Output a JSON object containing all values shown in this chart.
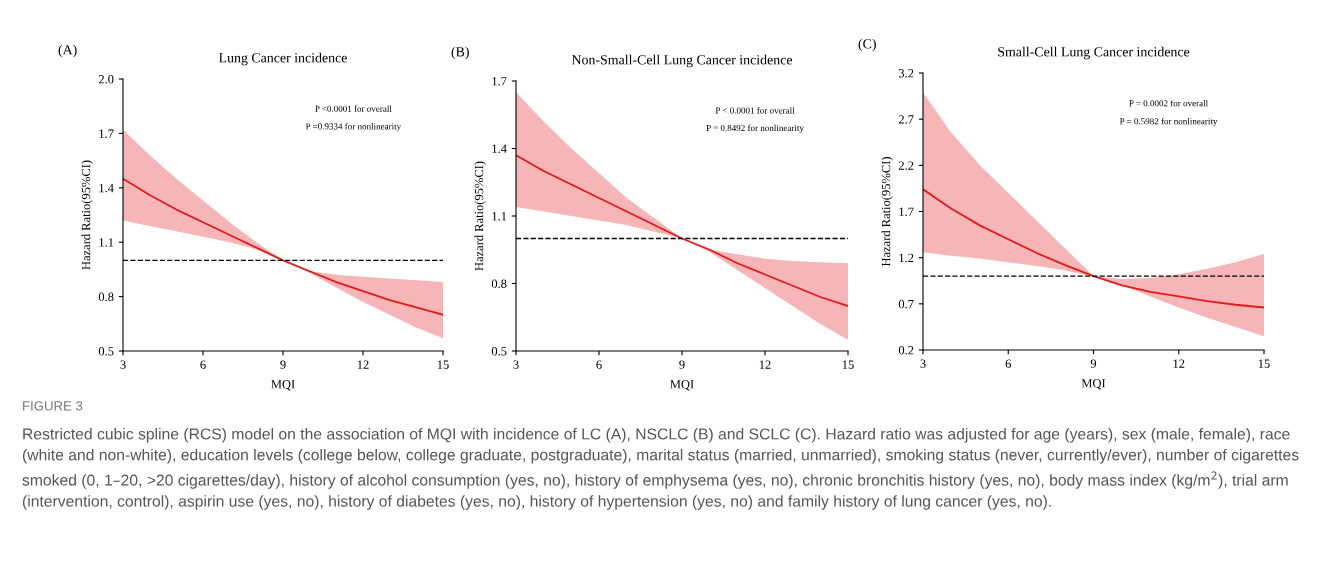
{
  "chart_data": [
    {
      "type": "line",
      "title": "Lung Cancer incidence",
      "xlabel": "MQI",
      "ylabel": "Hazard Ratio(95%CI)",
      "x": [
        3,
        4,
        5,
        6,
        7,
        8,
        9,
        10,
        11,
        12,
        13,
        14,
        15
      ],
      "series": [
        {
          "color": "#e31a1c",
          "values": [
            1.45,
            1.36,
            1.28,
            1.21,
            1.14,
            1.07,
            1.0,
            0.94,
            0.88,
            0.83,
            0.78,
            0.74,
            0.7
          ],
          "lower": [
            1.22,
            1.19,
            1.16,
            1.13,
            1.1,
            1.06,
            1.0,
            0.93,
            0.85,
            0.77,
            0.7,
            0.63,
            0.57
          ],
          "upper": [
            1.72,
            1.58,
            1.45,
            1.33,
            1.21,
            1.1,
            1.0,
            0.94,
            0.92,
            0.91,
            0.9,
            0.89,
            0.88
          ]
        }
      ],
      "xlim": [
        3,
        15
      ],
      "xticks": [
        3,
        6,
        9,
        12,
        15
      ],
      "ylim": [
        0.5,
        2.0
      ],
      "yticks": [
        0.5,
        0.8,
        1.1,
        1.4,
        1.7,
        {
          "value": 2,
          "label": "2.0"
        }
      ],
      "ref_lines": [
        {
          "axis": "y",
          "value": 1.0,
          "color": "#000000",
          "line_style": "dashed"
        }
      ],
      "grid": false,
      "marker": "none",
      "line_style": "solid",
      "annotations": [
        "(A)",
        "P <0.0001 for overall",
        "P =0.9334 for nonlinearity",
        "FIGURE 3",
        "Restricted cubic spline (RCS) model on the association of MQI with incidence of LC (A), NSCLC (B) and SCLC (C). Hazard ratio was adjusted for age (years), sex (male, female), race (white and non-white), education levels (college below, college graduate, postgraduate), marital status (married, unmarried), smoking status (never, currently/ever), number of cigarettes smoked (0, 1–20, >20 cigarettes/day), history of alcohol consumption (yes, no), history of emphysema (yes, no), chronic bronchitis history (yes, no), body mass index (kg/m$^{2}$), trial arm (intervention, control), aspirin use (yes, no), history of diabetes (yes, no), history of hypertension (yes, no) and family history of lung cancer (yes, no)."
      ]
    },
    {
      "type": "line",
      "title": "Non-Small-Cell Lung Cancer incidence",
      "xlabel": "MQI",
      "ylabel": "Hazard Ratio(95%CI)",
      "x": [
        3,
        4,
        5,
        6,
        7,
        8,
        9,
        10,
        11,
        12,
        13,
        14,
        15
      ],
      "series": [
        {
          "color": "#e31a1c",
          "values": [
            1.37,
            1.3,
            1.24,
            1.18,
            1.12,
            1.06,
            1.0,
            0.95,
            0.89,
            0.84,
            0.79,
            0.74,
            0.7
          ],
          "lower": [
            1.14,
            1.12,
            1.1,
            1.08,
            1.06,
            1.03,
            1.0,
            0.94,
            0.86,
            0.78,
            0.7,
            0.62,
            0.55
          ],
          "upper": [
            1.65,
            1.52,
            1.4,
            1.29,
            1.18,
            1.09,
            1.0,
            0.95,
            0.93,
            0.91,
            0.9,
            0.895,
            0.89
          ]
        }
      ],
      "xlim": [
        3,
        15
      ],
      "xticks": [
        3,
        6,
        9,
        12,
        15
      ],
      "ylim": [
        0.5,
        1.7
      ],
      "yticks": [
        0.5,
        0.8,
        1.1,
        1.4,
        1.7
      ],
      "ref_lines": [
        {
          "axis": "y",
          "value": 1.0,
          "color": "#000000",
          "line_style": "dashed"
        }
      ],
      "grid": false,
      "marker": "none",
      "line_style": "solid",
      "annotations": [
        "(B)",
        "P < 0.0001 for overall",
        "P = 0.8492 for nonlinearity"
      ]
    },
    {
      "type": "line",
      "title": "Small-Cell Lung Cancer incidence",
      "xlabel": "MQI",
      "ylabel": "Hazard Ratio(95%CI)",
      "x": [
        3,
        4,
        5,
        6,
        7,
        8,
        9,
        10,
        11,
        12,
        13,
        14,
        15
      ],
      "series": [
        {
          "color": "#e31a1c",
          "values": [
            1.94,
            1.73,
            1.55,
            1.4,
            1.25,
            1.12,
            1.0,
            0.9,
            0.83,
            0.78,
            0.73,
            0.69,
            0.66
          ],
          "lower": [
            1.26,
            1.22,
            1.19,
            1.15,
            1.11,
            1.06,
            1.0,
            0.9,
            0.78,
            0.66,
            0.55,
            0.45,
            0.35
          ],
          "upper": [
            2.99,
            2.55,
            2.2,
            1.9,
            1.6,
            1.3,
            1.0,
            0.97,
            0.98,
            1.02,
            1.08,
            1.15,
            1.24
          ]
        }
      ],
      "xlim": [
        3,
        15
      ],
      "xticks": [
        3,
        6,
        9,
        12,
        15
      ],
      "ylim": [
        0.2,
        3.2
      ],
      "yticks": [
        0.2,
        0.7,
        1.2,
        1.7,
        2.2,
        2.7,
        3.2
      ],
      "ref_lines": [
        {
          "axis": "y",
          "value": 1.0,
          "color": "#000000",
          "line_style": "dashed"
        }
      ],
      "grid": false,
      "marker": "none",
      "line_style": "solid",
      "annotations": [
        "(C)",
        "P = 0.0002 for overall",
        "P = 0.5982 for nonlinearity"
      ]
    }
  ]
}
